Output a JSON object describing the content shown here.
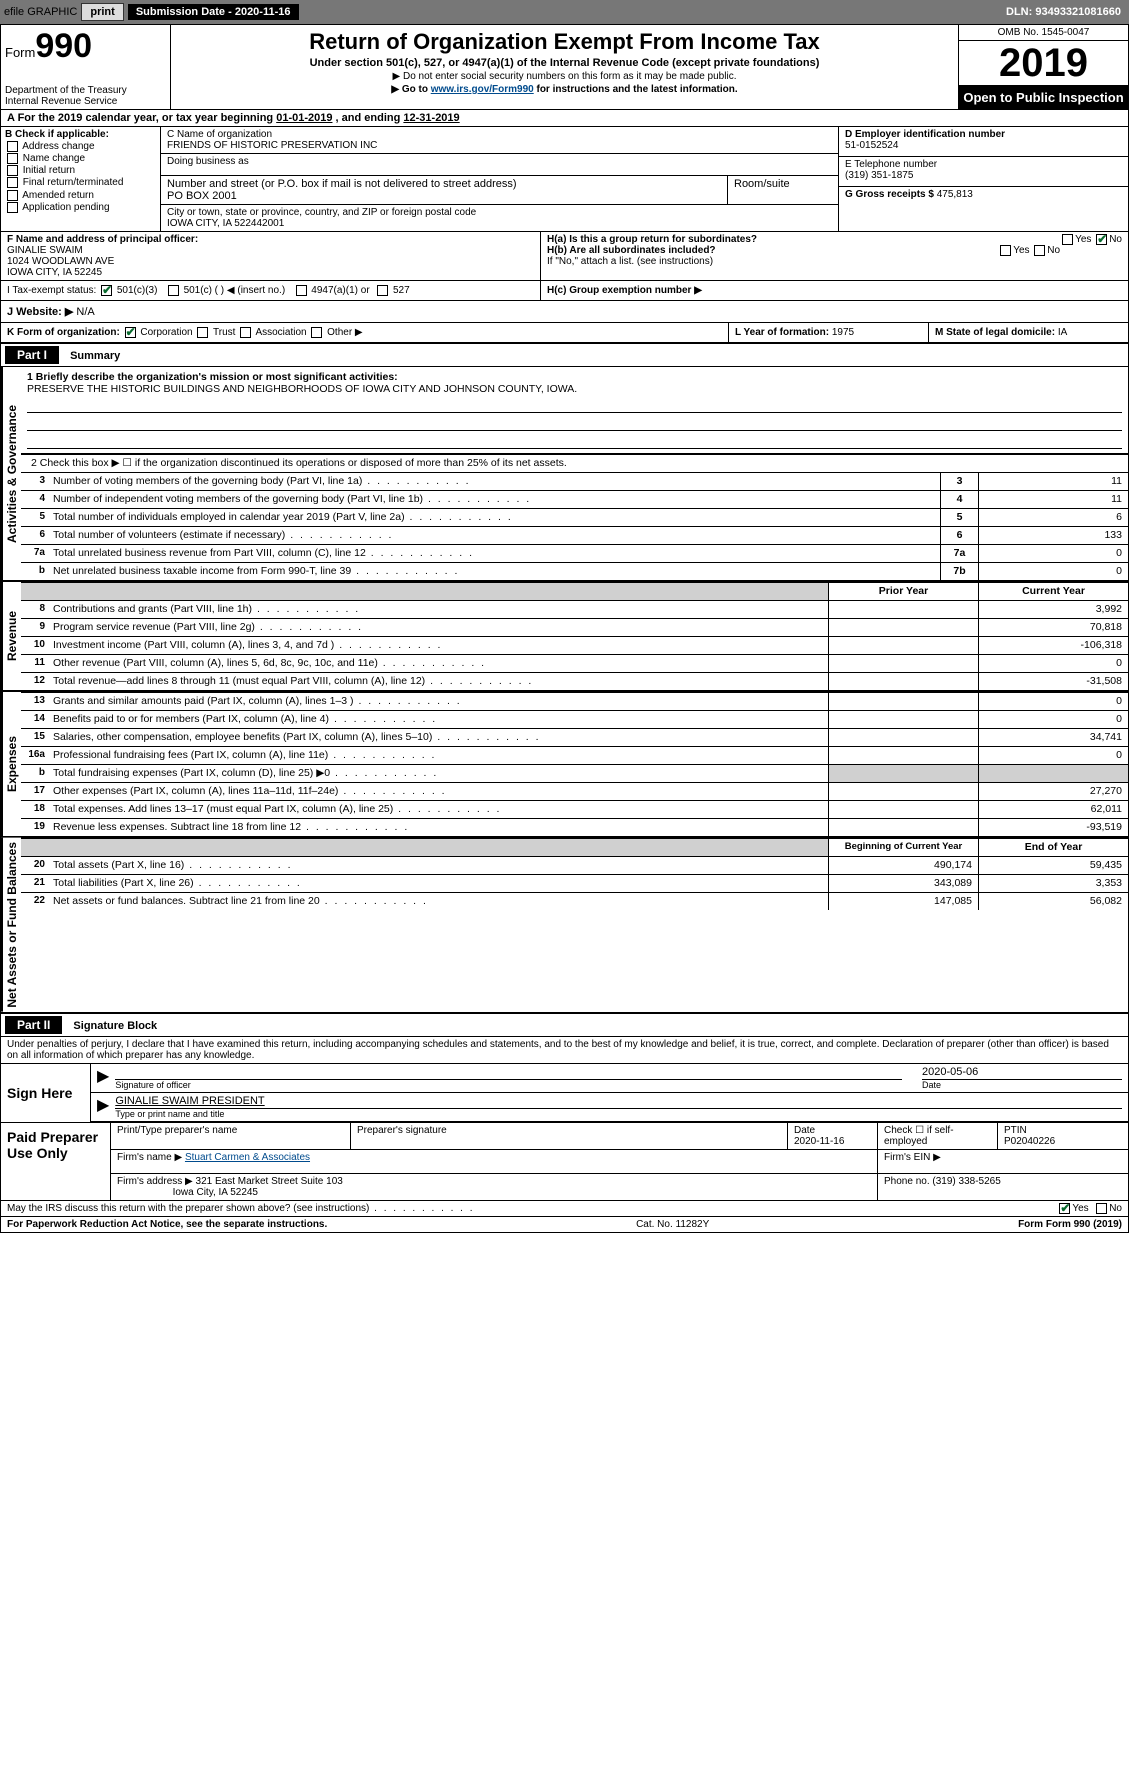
{
  "topbar": {
    "efile_label": "efile GRAPHIC",
    "print_btn": "print",
    "submission_label": "Submission Date - 2020-11-16",
    "dln": "DLN: 93493321081660"
  },
  "header": {
    "form_prefix": "Form",
    "form_number": "990",
    "dept": "Department of the Treasury\nInternal Revenue Service",
    "title": "Return of Organization Exempt From Income Tax",
    "subtitle": "Under section 501(c), 527, or 4947(a)(1) of the Internal Revenue Code (except private foundations)",
    "note1": "▶ Do not enter social security numbers on this form as it may be made public.",
    "note2_prefix": "▶ Go to ",
    "note2_link": "www.irs.gov/Form990",
    "note2_suffix": " for instructions and the latest information.",
    "omb": "OMB No. 1545-0047",
    "year": "2019",
    "open_public": "Open to Public Inspection"
  },
  "period": {
    "text_prefix": "A For the 2019 calendar year, or tax year beginning ",
    "begin": "01-01-2019",
    "mid": " , and ending ",
    "end": "12-31-2019"
  },
  "section_b": {
    "header": "B Check if applicable:",
    "items": [
      "Address change",
      "Name change",
      "Initial return",
      "Final return/terminated",
      "Amended return",
      "Application pending"
    ]
  },
  "section_c": {
    "name_label": "C Name of organization",
    "name": "FRIENDS OF HISTORIC PRESERVATION INC",
    "dba_label": "Doing business as",
    "dba": "",
    "addr_label": "Number and street (or P.O. box if mail is not delivered to street address)",
    "room_label": "Room/suite",
    "addr": "PO BOX 2001",
    "city_label": "City or town, state or province, country, and ZIP or foreign postal code",
    "city": "IOWA CITY, IA  522442001"
  },
  "section_d": {
    "ein_label": "D Employer identification number",
    "ein": "51-0152524",
    "phone_label": "E Telephone number",
    "phone": "(319) 351-1875",
    "gross_label": "G Gross receipts $",
    "gross": "475,813"
  },
  "section_f": {
    "label": "F Name and address of principal officer:",
    "name": "GINALIE SWAIM",
    "addr1": "1024 WOODLAWN AVE",
    "addr2": "IOWA CITY, IA  52245"
  },
  "section_h": {
    "ha_label": "H(a)  Is this a group return for subordinates?",
    "ha_yes": "Yes",
    "ha_no": "No",
    "hb_label": "H(b)  Are all subordinates included?",
    "hb_yes": "Yes",
    "hb_no": "No",
    "hb_note": "If \"No,\" attach a list. (see instructions)",
    "hc_label": "H(c)  Group exemption number ▶"
  },
  "tax_exempt": {
    "label": "I    Tax-exempt status:",
    "opt1": "501(c)(3)",
    "opt2": "501(c) (   ) ◀ (insert no.)",
    "opt3": "4947(a)(1) or",
    "opt4": "527"
  },
  "website": {
    "label": "J   Website: ▶",
    "value": "N/A"
  },
  "section_k": {
    "label": "K Form of organization:",
    "corp": "Corporation",
    "trust": "Trust",
    "assoc": "Association",
    "other": "Other ▶",
    "l_label": "L Year of formation:",
    "l_val": "1975",
    "m_label": "M State of legal domicile:",
    "m_val": "IA"
  },
  "part1": {
    "header": "Part I",
    "title": "Summary",
    "line1_label": "1  Briefly describe the organization's mission or most significant activities:",
    "mission": "PRESERVE THE HISTORIC BUILDINGS AND NEIGHBORHOODS OF IOWA CITY AND JOHNSON COUNTY, IOWA.",
    "line2": "2   Check this box ▶ ☐  if the organization discontinued its operations or disposed of more than 25% of its net assets.",
    "governance_label": "Activities & Governance",
    "revenue_label": "Revenue",
    "expenses_label": "Expenses",
    "netassets_label": "Net Assets or Fund Balances",
    "rows_gov": [
      {
        "n": "3",
        "d": "Number of voting members of the governing body (Part VI, line 1a)",
        "c": "3",
        "v": "11"
      },
      {
        "n": "4",
        "d": "Number of independent voting members of the governing body (Part VI, line 1b)",
        "c": "4",
        "v": "11"
      },
      {
        "n": "5",
        "d": "Total number of individuals employed in calendar year 2019 (Part V, line 2a)",
        "c": "5",
        "v": "6"
      },
      {
        "n": "6",
        "d": "Total number of volunteers (estimate if necessary)",
        "c": "6",
        "v": "133"
      },
      {
        "n": "7a",
        "d": "Total unrelated business revenue from Part VIII, column (C), line 12",
        "c": "7a",
        "v": "0"
      },
      {
        "n": "b",
        "d": "Net unrelated business taxable income from Form 990-T, line 39",
        "c": "7b",
        "v": "0"
      }
    ],
    "col_prior": "Prior Year",
    "col_current": "Current Year",
    "rows_rev": [
      {
        "n": "8",
        "d": "Contributions and grants (Part VIII, line 1h)",
        "p": "",
        "c": "3,992"
      },
      {
        "n": "9",
        "d": "Program service revenue (Part VIII, line 2g)",
        "p": "",
        "c": "70,818"
      },
      {
        "n": "10",
        "d": "Investment income (Part VIII, column (A), lines 3, 4, and 7d )",
        "p": "",
        "c": "-106,318"
      },
      {
        "n": "11",
        "d": "Other revenue (Part VIII, column (A), lines 5, 6d, 8c, 9c, 10c, and 11e)",
        "p": "",
        "c": "0"
      },
      {
        "n": "12",
        "d": "Total revenue—add lines 8 through 11 (must equal Part VIII, column (A), line 12)",
        "p": "",
        "c": "-31,508"
      }
    ],
    "rows_exp": [
      {
        "n": "13",
        "d": "Grants and similar amounts paid (Part IX, column (A), lines 1–3 )",
        "p": "",
        "c": "0"
      },
      {
        "n": "14",
        "d": "Benefits paid to or for members (Part IX, column (A), line 4)",
        "p": "",
        "c": "0"
      },
      {
        "n": "15",
        "d": "Salaries, other compensation, employee benefits (Part IX, column (A), lines 5–10)",
        "p": "",
        "c": "34,741"
      },
      {
        "n": "16a",
        "d": "Professional fundraising fees (Part IX, column (A), line 11e)",
        "p": "",
        "c": "0"
      },
      {
        "n": "b",
        "d": "Total fundraising expenses (Part IX, column (D), line 25) ▶0",
        "p": "shaded",
        "c": "shaded"
      },
      {
        "n": "17",
        "d": "Other expenses (Part IX, column (A), lines 11a–11d, 11f–24e)",
        "p": "",
        "c": "27,270"
      },
      {
        "n": "18",
        "d": "Total expenses. Add lines 13–17 (must equal Part IX, column (A), line 25)",
        "p": "",
        "c": "62,011"
      },
      {
        "n": "19",
        "d": "Revenue less expenses. Subtract line 18 from line 12",
        "p": "",
        "c": "-93,519"
      }
    ],
    "col_begin": "Beginning of Current Year",
    "col_end": "End of Year",
    "rows_net": [
      {
        "n": "20",
        "d": "Total assets (Part X, line 16)",
        "p": "490,174",
        "c": "59,435"
      },
      {
        "n": "21",
        "d": "Total liabilities (Part X, line 26)",
        "p": "343,089",
        "c": "3,353"
      },
      {
        "n": "22",
        "d": "Net assets or fund balances. Subtract line 21 from line 20",
        "p": "147,085",
        "c": "56,082"
      }
    ]
  },
  "part2": {
    "header": "Part II",
    "title": "Signature Block",
    "declaration": "Under penalties of perjury, I declare that I have examined this return, including accompanying schedules and statements, and to the best of my knowledge and belief, it is true, correct, and complete. Declaration of preparer (other than officer) is based on all information of which preparer has any knowledge.",
    "sign_here": "Sign Here",
    "sig_officer": "Signature of officer",
    "sig_date": "2020-05-06",
    "date_label": "Date",
    "officer_name": "GINALIE SWAIM  PRESIDENT",
    "type_label": "Type or print name and title",
    "paid_label": "Paid Preparer Use Only",
    "prep_name_label": "Print/Type preparer's name",
    "prep_sig_label": "Preparer's signature",
    "prep_date_label": "Date",
    "prep_date": "2020-11-16",
    "check_label": "Check ☐ if self-employed",
    "ptin_label": "PTIN",
    "ptin": "P02040226",
    "firm_name_label": "Firm's name    ▶",
    "firm_name": "Stuart Carmen & Associates",
    "firm_ein_label": "Firm's EIN ▶",
    "firm_addr_label": "Firm's address ▶",
    "firm_addr1": "321 East Market Street Suite 103",
    "firm_addr2": "Iowa City, IA  52245",
    "firm_phone_label": "Phone no.",
    "firm_phone": "(319) 338-5265"
  },
  "footer": {
    "discuss": "May the IRS discuss this return with the preparer shown above? (see instructions)",
    "yes": "Yes",
    "no": "No",
    "paperwork": "For Paperwork Reduction Act Notice, see the separate instructions.",
    "cat": "Cat. No. 11282Y",
    "form": "Form 990 (2019)"
  },
  "colors": {
    "topbar_bg": "#777777",
    "black": "#000000",
    "link": "#004b8d",
    "shaded": "#d0d0d0",
    "check_green": "#0a6b2f"
  }
}
